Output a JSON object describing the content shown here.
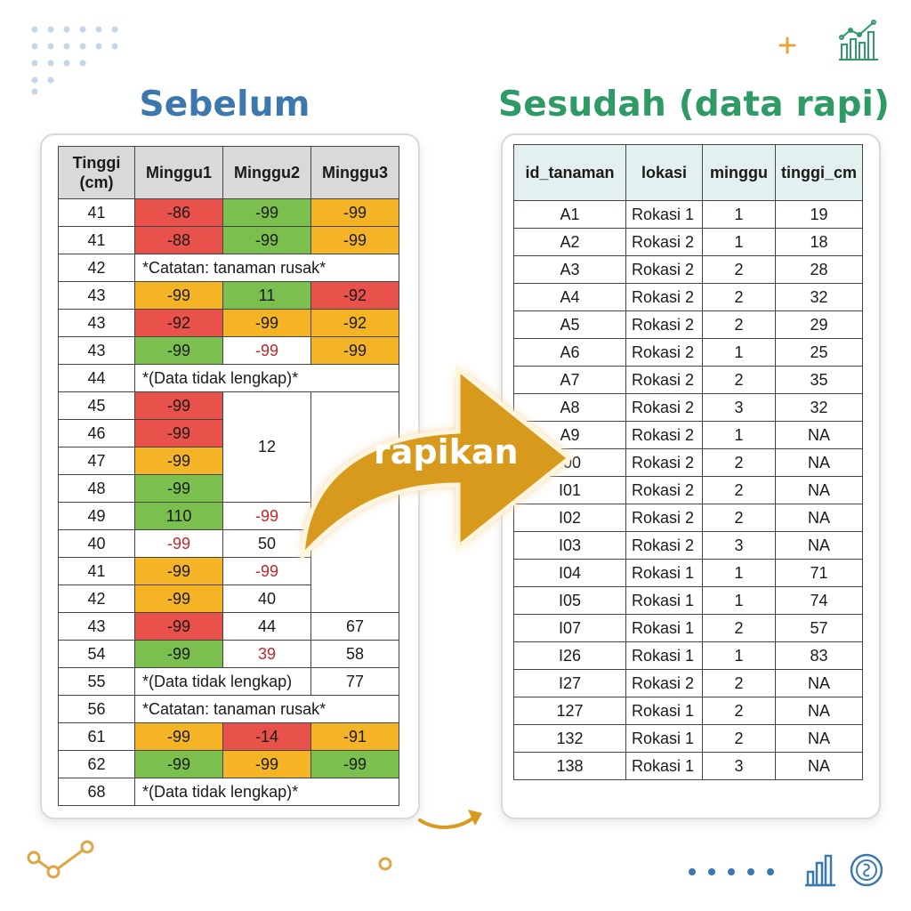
{
  "titles": {
    "before": "Sebelum",
    "after": "Sesudah (data rapi)"
  },
  "arrow_label": "rapikan",
  "colors": {
    "red": "#e8524a",
    "orange": "#f5b326",
    "green": "#7bbf4f",
    "before_title": "#3c77ad",
    "after_title": "#2e9a66",
    "arrow": "#d89a1e"
  },
  "before": {
    "headers": [
      "Tinggi (cm)",
      "Minggu1",
      "Minggu2",
      "Minggu3"
    ],
    "rows": [
      [
        "41",
        "-86",
        "-99",
        "-99"
      ],
      [
        "41",
        "-88",
        "-99",
        "-99"
      ],
      [
        "42",
        "*Catatan:  tanaman rusak*"
      ],
      [
        "43",
        "-99",
        "11",
        "-92"
      ],
      [
        "43",
        "-92",
        "-99",
        "-92"
      ],
      [
        "43",
        "-99",
        "-99",
        "-99"
      ],
      [
        "44",
        "*(Data tidak lengkap)*"
      ],
      [
        "45",
        "-99",
        "12"
      ],
      [
        "46",
        "-99"
      ],
      [
        "47",
        "-99"
      ],
      [
        "48",
        "-99"
      ],
      [
        "49",
        "110",
        "-99"
      ],
      [
        "40",
        "-99",
        "50"
      ],
      [
        "41",
        "-99",
        "-99"
      ],
      [
        "42",
        "-99",
        "40"
      ],
      [
        "43",
        "-99",
        "44",
        "67"
      ],
      [
        "54",
        "-99",
        "39",
        "58"
      ],
      [
        "55",
        "*(Data tidak lengkap)",
        "77"
      ],
      [
        "56",
        "*Catatan: tanaman rusak*"
      ],
      [
        "61",
        "-99",
        "-14",
        "-91"
      ],
      [
        "62",
        "-99",
        "-99",
        "-99"
      ],
      [
        "68",
        "*(Data tidak lengkap)*"
      ]
    ]
  },
  "after": {
    "headers": [
      "id_tanaman",
      "lokasi",
      "minggu",
      "tinggi_cm"
    ],
    "rows": [
      [
        "A1",
        "Rokasi 1",
        "1",
        "19"
      ],
      [
        "A2",
        "Rokasi 2",
        "1",
        "18"
      ],
      [
        "A3",
        "Rokasi 2",
        "2",
        "28"
      ],
      [
        "A4",
        "Rokasi 2",
        "2",
        "32"
      ],
      [
        "A5",
        "Rokasi 2",
        "2",
        "29"
      ],
      [
        "A6",
        "Rokasi 2",
        "1",
        "25"
      ],
      [
        "A7",
        "Rokasi 2",
        "2",
        "35"
      ],
      [
        "A8",
        "Rokasi 2",
        "3",
        "32"
      ],
      [
        "A9",
        "Rokasi 2",
        "1",
        "NA"
      ],
      [
        "I00",
        "Rokasi 2",
        "2",
        "NA"
      ],
      [
        "I01",
        "Rokasi 2",
        "2",
        "NA"
      ],
      [
        "I02",
        "Rokasi 2",
        "2",
        "NA"
      ],
      [
        "I03",
        "Rokasi 2",
        "3",
        "NA"
      ],
      [
        "I04",
        "Rokasi 1",
        "1",
        "71"
      ],
      [
        "I05",
        "Rokasi 1",
        "1",
        "74"
      ],
      [
        "I07",
        "Rokasi 1",
        "2",
        "57"
      ],
      [
        "I26",
        "Rokasi 1",
        "1",
        "83"
      ],
      [
        "I27",
        "Rokasi 2",
        "2",
        "NA"
      ],
      [
        "127",
        "Rokasi 1",
        "2",
        "NA"
      ],
      [
        "132",
        "Rokasi 1",
        "2",
        "NA"
      ],
      [
        "138",
        "Rokasi 1",
        "3",
        "NA"
      ]
    ]
  }
}
